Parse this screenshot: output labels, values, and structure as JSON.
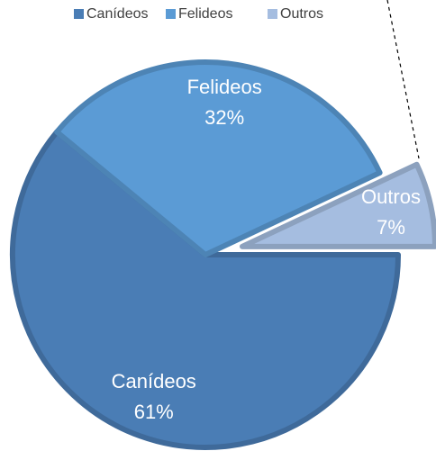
{
  "chart_data": {
    "type": "pie",
    "categories": [
      "Canídeos",
      "Felideos",
      "Outros"
    ],
    "values": [
      61,
      32,
      7
    ],
    "value_labels": [
      "61%",
      "32%",
      "7%"
    ],
    "colors": [
      "#4a7db5",
      "#5b9bd5",
      "#a5bde0"
    ],
    "explode": [
      0,
      0,
      1
    ]
  }
}
